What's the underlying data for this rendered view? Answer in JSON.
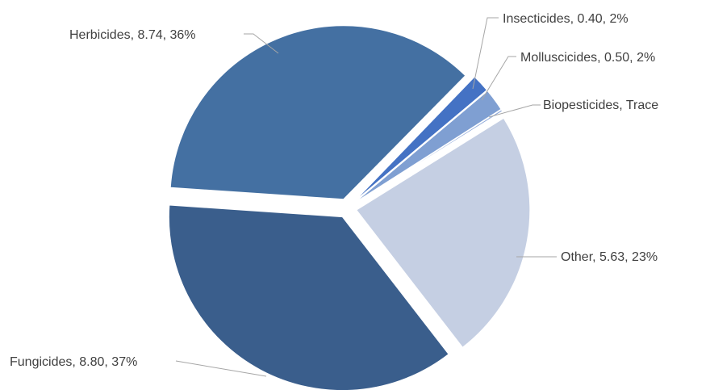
{
  "chart_data": {
    "type": "pie",
    "title": "",
    "slices": [
      {
        "name": "Insecticides",
        "value": 0.4,
        "label": "Insecticides, 0.40, 2%",
        "color": "#4472c4"
      },
      {
        "name": "Molluscicides",
        "value": 0.5,
        "label": "Molluscicides, 0.50, 2%",
        "color": "#7f9fd2"
      },
      {
        "name": "Biopesticides",
        "value": 0.0,
        "label": "Biopesticides, Trace",
        "color": "#8fa9d9"
      },
      {
        "name": "Other",
        "value": 5.63,
        "label": "Other, 5.63, 23%",
        "color": "#c5cfe3"
      },
      {
        "name": "Fungicides",
        "value": 8.8,
        "label": "Fungicides, 8.80, 37%",
        "color": "#3a5e8c"
      },
      {
        "name": "Herbicides",
        "value": 8.74,
        "label": "Herbicides, 8.74, 36%",
        "color": "#4470a2"
      }
    ]
  }
}
